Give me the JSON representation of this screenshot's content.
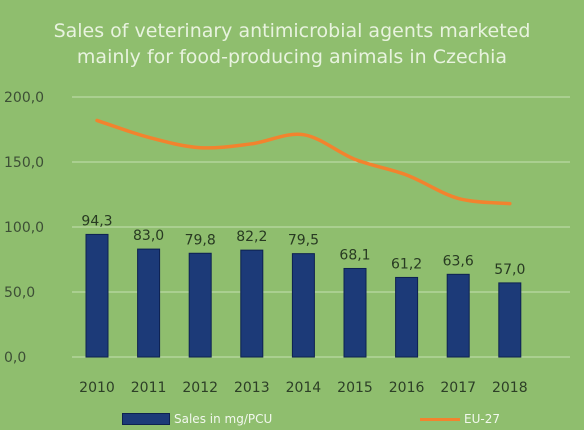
{
  "chart_data": {
    "type": "bar",
    "title_lines": [
      "Sales of veterinary antimicrobial agents marketed",
      "mainly for food-producing animals in Czechia"
    ],
    "categories": [
      "2010",
      "2011",
      "2012",
      "2013",
      "2014",
      "2015",
      "2016",
      "2017",
      "2018"
    ],
    "y_ticks": [
      "0,0",
      "50,0",
      "100,0",
      "150,0",
      "200,0"
    ],
    "ylim": [
      0,
      200
    ],
    "grid": true,
    "legend_placement": "bottom",
    "series": [
      {
        "name": "Sales in mg/PCU",
        "type": "bar",
        "color": "#1c3a78",
        "values": [
          94.3,
          83.0,
          79.8,
          82.2,
          79.5,
          68.1,
          61.2,
          63.6,
          57.0
        ],
        "labels": [
          "94,3",
          "83,0",
          "79,8",
          "82,2",
          "79,5",
          "68,1",
          "61,2",
          "63,6",
          "57,0"
        ]
      },
      {
        "name": "EU-27",
        "type": "line",
        "color": "#f2832e",
        "values": [
          182,
          169,
          161,
          164,
          171,
          152,
          140,
          122,
          118
        ]
      }
    ]
  }
}
